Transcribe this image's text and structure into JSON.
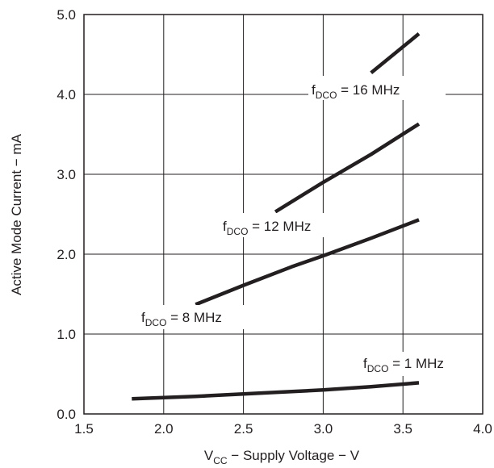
{
  "chart_data": {
    "type": "line",
    "xlabel": {
      "main": "V",
      "sub": "CC",
      "rest": " − Supply Voltage − V"
    },
    "ylabel": "Active Mode Current − mA",
    "xlim": [
      1.5,
      4.0
    ],
    "ylim": [
      0.0,
      5.0
    ],
    "x_ticks": [
      "1.5",
      "2.0",
      "2.5",
      "3.0",
      "3.5",
      "4.0"
    ],
    "y_ticks": [
      "0.0",
      "1.0",
      "2.0",
      "3.0",
      "4.0",
      "5.0"
    ],
    "grid": true,
    "series": [
      {
        "name": {
          "main": "f",
          "sub": "DCO",
          "rest": " = 1 MHz"
        },
        "x": [
          1.8,
          2.2,
          2.7,
          3.0,
          3.3,
          3.6
        ],
        "y": [
          0.19,
          0.22,
          0.27,
          0.3,
          0.34,
          0.39
        ]
      },
      {
        "name": {
          "main": "f",
          "sub": "DCO",
          "rest": " = 8 MHz"
        },
        "x": [
          2.2,
          2.5,
          2.8,
          3.0,
          3.3,
          3.6
        ],
        "y": [
          1.37,
          1.61,
          1.84,
          1.98,
          2.2,
          2.43
        ]
      },
      {
        "name": {
          "main": "f",
          "sub": "DCO",
          "rest": " = 12 MHz"
        },
        "x": [
          2.7,
          3.0,
          3.3,
          3.6
        ],
        "y": [
          2.53,
          2.9,
          3.25,
          3.63
        ]
      },
      {
        "name": {
          "main": "f",
          "sub": "DCO",
          "rest": " = 16 MHz"
        },
        "x": [
          3.3,
          3.6
        ],
        "y": [
          4.27,
          4.76
        ]
      }
    ]
  }
}
